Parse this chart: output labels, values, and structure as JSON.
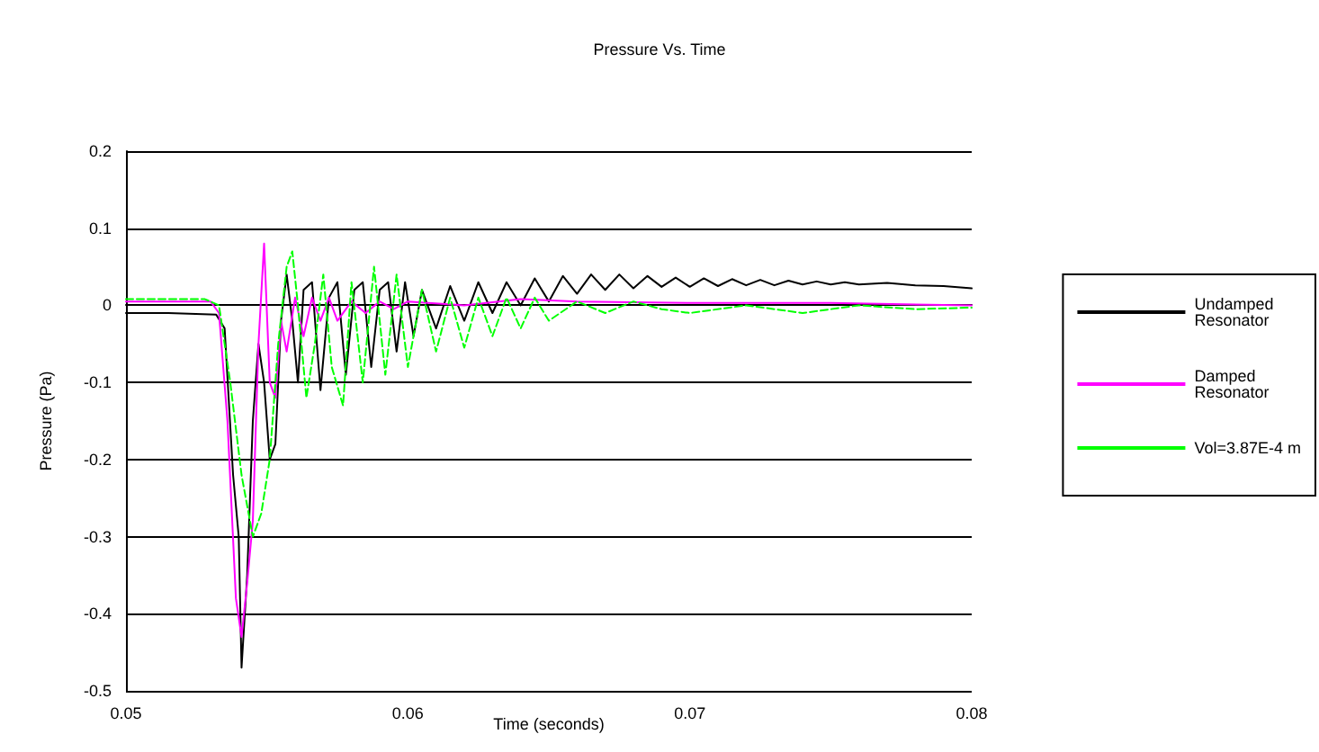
{
  "chart_data": {
    "type": "line",
    "title": "Pressure Vs. Time",
    "xlabel": "Time (seconds)",
    "ylabel": "Pressure (Pa)",
    "xlim": [
      0.05,
      0.08
    ],
    "xticks": [
      0.05,
      0.06,
      0.07,
      0.08
    ],
    "ylim": [
      -0.5,
      0.2
    ],
    "yticks": [
      -0.5,
      -0.4,
      -0.3,
      -0.2,
      -0.1,
      0,
      0.1,
      0.2
    ],
    "grid": "y",
    "legend": "right",
    "marker": "none",
    "series": [
      {
        "name": "Undamped Resonator",
        "color": "#000000",
        "line_style": "solid",
        "x": [
          0.05,
          0.0515,
          0.0532,
          0.0535,
          0.0538,
          0.054,
          0.0541,
          0.0543,
          0.0545,
          0.0547,
          0.0549,
          0.0551,
          0.0553,
          0.0555,
          0.0557,
          0.0559,
          0.0561,
          0.0563,
          0.0566,
          0.0569,
          0.0572,
          0.0575,
          0.0578,
          0.0581,
          0.0584,
          0.0587,
          0.059,
          0.0593,
          0.0596,
          0.0599,
          0.0602,
          0.0605,
          0.061,
          0.0615,
          0.062,
          0.0625,
          0.063,
          0.0635,
          0.064,
          0.0645,
          0.065,
          0.0655,
          0.066,
          0.0665,
          0.067,
          0.0675,
          0.068,
          0.0685,
          0.069,
          0.0695,
          0.07,
          0.0705,
          0.071,
          0.0715,
          0.072,
          0.0725,
          0.073,
          0.0735,
          0.074,
          0.0745,
          0.075,
          0.0755,
          0.076,
          0.077,
          0.078,
          0.079,
          0.08
        ],
        "values": [
          -0.01,
          -0.01,
          -0.012,
          -0.03,
          -0.22,
          -0.3,
          -0.47,
          -0.35,
          -0.15,
          -0.05,
          -0.1,
          -0.2,
          -0.18,
          -0.02,
          0.04,
          -0.02,
          -0.1,
          0.02,
          0.03,
          -0.11,
          0.01,
          0.03,
          -0.09,
          0.02,
          0.03,
          -0.08,
          0.02,
          0.03,
          -0.06,
          0.03,
          -0.04,
          0.02,
          -0.03,
          0.025,
          -0.02,
          0.03,
          -0.01,
          0.03,
          0.0,
          0.035,
          0.005,
          0.038,
          0.015,
          0.04,
          0.02,
          0.04,
          0.022,
          0.038,
          0.024,
          0.036,
          0.024,
          0.035,
          0.025,
          0.034,
          0.026,
          0.033,
          0.026,
          0.032,
          0.027,
          0.031,
          0.027,
          0.03,
          0.027,
          0.029,
          0.026,
          0.025,
          0.022
        ]
      },
      {
        "name": "Damped Resonator",
        "color": "#ff00ff",
        "line_style": "solid",
        "x": [
          0.05,
          0.053,
          0.0533,
          0.0536,
          0.0539,
          0.0541,
          0.0543,
          0.0545,
          0.0547,
          0.0549,
          0.0551,
          0.0553,
          0.0555,
          0.0557,
          0.056,
          0.0563,
          0.0566,
          0.0569,
          0.0572,
          0.0575,
          0.058,
          0.0585,
          0.059,
          0.0595,
          0.06,
          0.062,
          0.064,
          0.066,
          0.07,
          0.075,
          0.08
        ],
        "values": [
          0.005,
          0.005,
          -0.01,
          -0.15,
          -0.38,
          -0.43,
          -0.36,
          -0.28,
          -0.05,
          0.08,
          -0.1,
          -0.12,
          -0.02,
          -0.06,
          0.01,
          -0.04,
          0.01,
          -0.02,
          0.01,
          -0.02,
          0.005,
          -0.01,
          0.005,
          -0.005,
          0.005,
          0.0,
          0.008,
          0.005,
          0.003,
          0.003,
          0.0
        ]
      },
      {
        "name": "Vol=3.87E-4 m",
        "color": "#00ff00",
        "line_style": "dashed",
        "x": [
          0.05,
          0.0528,
          0.0533,
          0.0537,
          0.0541,
          0.0545,
          0.0548,
          0.0551,
          0.0554,
          0.0557,
          0.0559,
          0.0561,
          0.0564,
          0.0567,
          0.057,
          0.0573,
          0.0577,
          0.058,
          0.0584,
          0.0588,
          0.0592,
          0.0596,
          0.06,
          0.0605,
          0.061,
          0.0615,
          0.062,
          0.0625,
          0.063,
          0.0635,
          0.064,
          0.0645,
          0.065,
          0.066,
          0.067,
          0.068,
          0.069,
          0.07,
          0.072,
          0.074,
          0.076,
          0.078,
          0.08
        ],
        "values": [
          0.008,
          0.008,
          0.0,
          -0.1,
          -0.22,
          -0.3,
          -0.27,
          -0.2,
          -0.05,
          0.05,
          0.07,
          0.0,
          -0.12,
          -0.05,
          0.04,
          -0.08,
          -0.13,
          0.03,
          -0.1,
          0.05,
          -0.09,
          0.04,
          -0.08,
          0.02,
          -0.06,
          0.01,
          -0.055,
          0.01,
          -0.04,
          0.01,
          -0.03,
          0.01,
          -0.02,
          0.005,
          -0.01,
          0.005,
          -0.005,
          -0.01,
          0.0,
          -0.01,
          0.0,
          -0.005,
          -0.003
        ]
      }
    ]
  }
}
